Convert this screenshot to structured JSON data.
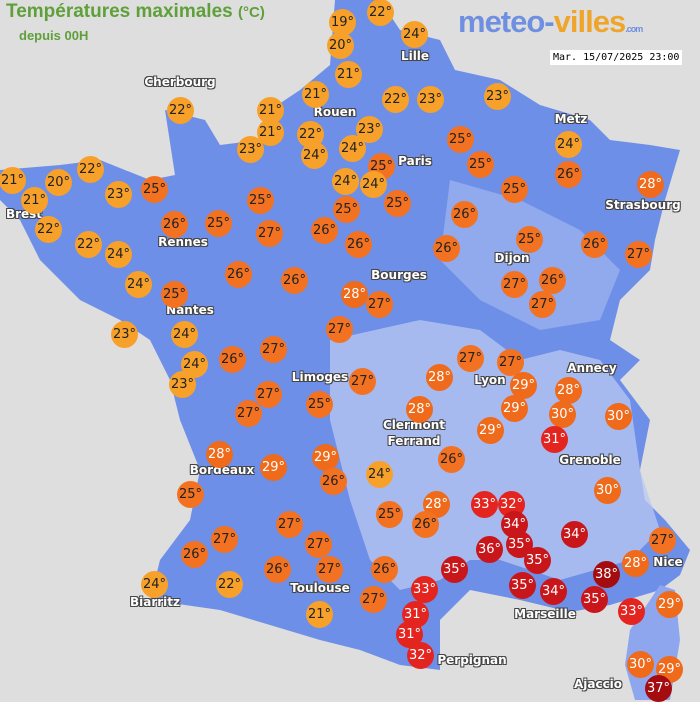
{
  "header": {
    "title": "Températures maximales",
    "unit": "(°C)",
    "subtitle": "depuis 00H",
    "logo_main": "meteo-",
    "logo_accent": "villes",
    "logo_suffix": ".com",
    "datetime": "Mar. 15/07/2025 23:00"
  },
  "colors": {
    "land": "#6e8fe8",
    "relief": "#b9c8f3",
    "sea": "#dedede",
    "t_low": "#f7a12a",
    "t_mid": "#f37221",
    "t_high": "#ef6a1a",
    "t_hot": "#e4241f",
    "t_veryhot": "#c8161b",
    "t_extreme": "#a50c10"
  },
  "cities": [
    "Cherbourg",
    "Lille",
    "Rouen",
    "Paris",
    "Metz",
    "Strasbourg",
    "Brest",
    "Rennes",
    "Nantes",
    "Dijon",
    "Bourges",
    "Limoges",
    "Annecy",
    "Clermont",
    "Ferrand",
    "Lyon",
    "Grenoble",
    "Bordeaux",
    "Nice",
    "Toulouse",
    "Biarritz",
    "Marseille",
    "Ajaccio",
    "Perpignan"
  ],
  "temperatures": [
    "19°",
    "22°",
    "20°",
    "24°",
    "21°",
    "21°",
    "21°",
    "21°",
    "22°",
    "23°",
    "23°",
    "22°",
    "22°",
    "24°",
    "23°",
    "23°",
    "24°",
    "25°",
    "25°",
    "24°",
    "25°",
    "24°",
    "26°",
    "28°",
    "25°",
    "25°",
    "24°",
    "25°",
    "21°",
    "21°",
    "20°",
    "22°",
    "23°",
    "25°",
    "26°",
    "25°",
    "25°",
    "27°",
    "26°",
    "26°",
    "26°",
    "26°",
    "25°",
    "26°",
    "27°",
    "27°",
    "26°",
    "27°",
    "22°",
    "22°",
    "24°",
    "24°",
    "25°",
    "26°",
    "26°",
    "28°",
    "27°",
    "27°",
    "23°",
    "24°",
    "24°",
    "23°",
    "26°",
    "27°",
    "27°",
    "27°",
    "25°",
    "27°",
    "27°",
    "28°",
    "27°",
    "29°",
    "29°",
    "28°",
    "30°",
    "30°",
    "28°",
    "29°",
    "31°",
    "28°",
    "29°",
    "29°",
    "26°",
    "24°",
    "26°",
    "25°",
    "30°",
    "28°",
    "26°",
    "25°",
    "33°",
    "32°",
    "34°",
    "36°",
    "35°",
    "34°",
    "35°",
    "35°",
    "35°",
    "34°",
    "38°",
    "35°",
    "27°",
    "27°",
    "26°",
    "27°",
    "27°",
    "26°",
    "26°",
    "22°",
    "24°",
    "27°",
    "33°",
    "21°",
    "31°",
    "31°",
    "32°",
    "27°",
    "28°",
    "29°",
    "33°",
    "30°",
    "29°",
    "37°"
  ]
}
